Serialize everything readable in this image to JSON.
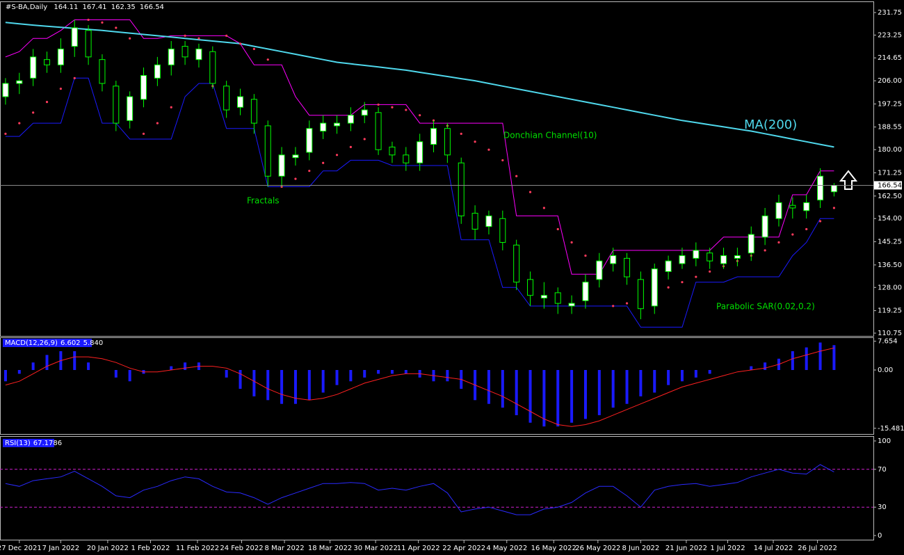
{
  "chart_data": [
    {
      "type": "candlestick",
      "title": "#S-BA,Daily",
      "xlim": [
        -0.4,
        62.8
      ],
      "xticks": [
        {
          "value": 1,
          "label": "27 Dec 2021"
        },
        {
          "value": 4,
          "label": "7 Jan 2022"
        },
        {
          "value": 7.4,
          "label": "20 Jan 2022"
        },
        {
          "value": 10.5,
          "label": "1 Feb 2022"
        },
        {
          "value": 13.9,
          "label": "11 Feb 2022"
        },
        {
          "value": 17.1,
          "label": "24 Feb 2022"
        },
        {
          "value": 20.2,
          "label": "8 Mar 2022"
        },
        {
          "value": 23.5,
          "label": "18 Mar 2022"
        },
        {
          "value": 26.8,
          "label": "30 Mar 2022"
        },
        {
          "value": 29.9,
          "label": "11 Apr 2022"
        },
        {
          "value": 33.2,
          "label": "22 Apr 2022"
        },
        {
          "value": 36.3,
          "label": "4 May 2022"
        },
        {
          "value": 39.7,
          "label": "16 May 2022"
        },
        {
          "value": 42.9,
          "label": "26 May 2022"
        },
        {
          "value": 46,
          "label": "8 Jun 2022"
        },
        {
          "value": 49.3,
          "label": "21 Jun 2022"
        },
        {
          "value": 52.3,
          "label": "1 Jul 2022"
        },
        {
          "value": 55.6,
          "label": "14 Jul 2022"
        },
        {
          "value": 58.8,
          "label": "26 Jul 2022"
        }
      ],
      "ylim": [
        109.7,
        235.7
      ],
      "yticks": [
        231.75,
        223.25,
        214.65,
        {
          "value": 206,
          "label": "206.00"
        },
        197.25,
        188.55,
        {
          "value": 180,
          "label": "180.00"
        },
        171.25,
        {
          "value": 162.5,
          "label": "162.50"
        },
        {
          "value": 154,
          "label": "154.00"
        },
        145.25,
        {
          "value": 136.5,
          "label": "136.50"
        },
        {
          "value": 128,
          "label": "128.00"
        },
        119.25,
        110.75
      ],
      "up_color": "#ffffff",
      "down_color": "#000000",
      "outline_color": "#00ff00",
      "open": [
        200,
        205,
        207,
        214,
        212,
        219,
        225,
        214,
        204,
        191,
        199,
        207,
        212,
        219,
        214,
        217,
        204,
        196,
        199,
        189,
        170,
        177,
        179,
        187,
        189,
        190,
        193,
        194,
        181,
        178,
        175,
        182,
        188,
        175,
        156,
        151,
        154,
        144,
        131,
        124,
        126,
        121,
        123,
        131,
        137,
        139,
        131,
        121,
        134,
        137,
        139,
        141,
        137,
        139,
        141,
        147,
        154,
        159,
        157,
        161,
        164.11
      ],
      "high": [
        207,
        209,
        218,
        217,
        222,
        229,
        227,
        216,
        206,
        202,
        211,
        215,
        221,
        221,
        220,
        219,
        206,
        203,
        201,
        191,
        181,
        181,
        191,
        193,
        193,
        196,
        198,
        196,
        183,
        181,
        186,
        191,
        190,
        177,
        159,
        157,
        157,
        146,
        134,
        130,
        128,
        125,
        133,
        141,
        143,
        141,
        134,
        137,
        140,
        143,
        145,
        143,
        143,
        143,
        151,
        158,
        163,
        162,
        163,
        173,
        167.41
      ],
      "low": [
        197,
        201,
        204,
        209,
        209,
        215,
        212,
        202,
        187,
        188,
        196,
        204,
        208,
        212,
        211,
        203,
        192,
        193,
        186,
        166,
        166,
        174,
        176,
        184,
        186,
        187,
        190,
        178,
        175,
        172,
        172,
        179,
        175,
        152,
        146,
        148,
        142,
        127,
        121,
        120,
        118,
        118,
        120,
        128,
        134,
        129,
        116,
        118,
        131,
        135,
        136,
        135,
        135,
        136,
        138,
        144,
        151,
        154,
        154,
        158,
        162.35
      ],
      "close": [
        205,
        206,
        215,
        212,
        218,
        226,
        215,
        205,
        190,
        200,
        208,
        212,
        218,
        215,
        218,
        205,
        195,
        200,
        190,
        170,
        178,
        178,
        188,
        190,
        190,
        193,
        195,
        180,
        178,
        175,
        183,
        188,
        178,
        155,
        150,
        155,
        145,
        130,
        125,
        125,
        122,
        122,
        130,
        138,
        140,
        132,
        120,
        135,
        138,
        140,
        142,
        138,
        140,
        140,
        148,
        155,
        160,
        158,
        160,
        170,
        166.54
      ],
      "ma": {
        "name": "MA(200)",
        "color": "#4fd8ec",
        "values": [
          228,
          227.5,
          227,
          226.6,
          226.2,
          225.8,
          225.4,
          225,
          224.5,
          224,
          223.5,
          223,
          222.5,
          222,
          221.5,
          221,
          220.5,
          220,
          219,
          218,
          217,
          216,
          215,
          214,
          213,
          212.4,
          211.8,
          211.2,
          210.6,
          210,
          209.2,
          208.4,
          207.6,
          206.8,
          206,
          205,
          204,
          203,
          202,
          201,
          200,
          199,
          198,
          197,
          196,
          195,
          194,
          193,
          192,
          191,
          190.2,
          189.4,
          188.6,
          187.8,
          187,
          186,
          185,
          184,
          183,
          182,
          181
        ]
      },
      "donchian": {
        "name": "Donchian Channel(10)",
        "upper_color": "#ff00ff",
        "lower_color": "#1a1aff",
        "upper": [
          215,
          217,
          222,
          222,
          225,
          229,
          229,
          229,
          229,
          229,
          222,
          222,
          223,
          223,
          223,
          223,
          223,
          220,
          212,
          212,
          212,
          200,
          193,
          193,
          193,
          193,
          197,
          197,
          197,
          197,
          190,
          190,
          190,
          190,
          190,
          190,
          190,
          155,
          155,
          155,
          155,
          133,
          133,
          133,
          142,
          142,
          142,
          142,
          142,
          142,
          142,
          142,
          147,
          147,
          147,
          147,
          147,
          163,
          163,
          172,
          172
        ],
        "lower": [
          185,
          185,
          190,
          190,
          190,
          207,
          207,
          190,
          190,
          184,
          184,
          184,
          184,
          200,
          205,
          205,
          188,
          188,
          188,
          166,
          166,
          166,
          166,
          172,
          172,
          176,
          176,
          176,
          174,
          174,
          174,
          174,
          174,
          146,
          146,
          146,
          128,
          128,
          121,
          121,
          121,
          121,
          121,
          121,
          121,
          121,
          113,
          113,
          113,
          113,
          130,
          130,
          130,
          132,
          132,
          132,
          132,
          140,
          145,
          154,
          154
        ]
      },
      "sar": {
        "name": "Parabolic SAR(0.02,0.2)",
        "color": "#ff3b5c",
        "values": [
          186,
          190,
          194,
          198,
          203,
          207,
          229,
          228,
          226,
          222,
          186,
          190,
          196,
          223,
          222,
          204,
          223,
          220,
          218,
          214,
          166,
          169,
          172,
          175,
          178,
          181,
          184,
          197,
          196,
          195,
          193,
          191,
          189,
          186,
          183,
          180,
          176,
          170,
          164,
          158,
          150,
          145,
          140,
          137,
          121,
          122,
          124,
          126,
          128,
          130,
          132,
          134,
          136,
          138,
          140,
          142,
          145,
          148,
          150,
          153,
          158
        ]
      },
      "fractals_label": "Fractals",
      "annotation_color": "#00e000",
      "last_price_line": true
    },
    {
      "type": "macd",
      "title": "MACD(12,26,9)",
      "legend_values": [
        6.602,
        {
          "value": 5.84,
          "label": "5.840"
        }
      ],
      "ylim": [
        -17.0,
        8.5
      ],
      "yticks": [
        7.654,
        {
          "value": 0,
          "label": "0.00"
        },
        -15.481
      ],
      "histogram": {
        "color": "#1a1aff",
        "values": [
          -3,
          -1,
          2,
          4,
          5,
          5,
          2,
          0,
          -2,
          -3,
          -1,
          0,
          1,
          2,
          2,
          0,
          -2,
          -5,
          -7,
          -8,
          -9,
          -9,
          -8,
          -6,
          -4,
          -3,
          -2,
          -1,
          -1,
          -1,
          -2,
          -3,
          -3,
          -5,
          -8,
          -9,
          -10,
          -12,
          -14,
          -15,
          -15,
          -14,
          -13,
          -12,
          -10,
          -9,
          -7,
          -6,
          -4,
          -3,
          -2,
          -1,
          0,
          0,
          1,
          2,
          3,
          5,
          6,
          7.3,
          6.602
        ]
      },
      "signal": {
        "color": "#ff2020",
        "values": [
          -4,
          -3,
          -1,
          1,
          2.5,
          3.5,
          3.5,
          3,
          2,
          0.5,
          -0.5,
          -0.5,
          0,
          0.5,
          1,
          1,
          0.5,
          -1,
          -3,
          -5,
          -6.5,
          -7.5,
          -8,
          -7.5,
          -6.5,
          -5,
          -3.5,
          -2.5,
          -1.5,
          -1,
          -1,
          -1.5,
          -2,
          -2.5,
          -4,
          -5.5,
          -7,
          -9,
          -11,
          -13,
          -14.5,
          -15,
          -14.5,
          -13.5,
          -12,
          -10.5,
          -9,
          -7.5,
          -6,
          -4.5,
          -3.5,
          -2.5,
          -1.5,
          -0.5,
          0,
          0.5,
          1.5,
          3,
          4,
          5,
          5.84
        ]
      }
    },
    {
      "type": "line",
      "title": "RSI(13)",
      "ylim": [
        -4.4,
        104.4
      ],
      "yticks": [
        100,
        70,
        30,
        0
      ],
      "levels": [
        70,
        30
      ],
      "level_color": "#d020d0",
      "series": [
        {
          "color": "#2a2aff",
          "values": [
            55,
            52,
            58,
            60,
            62,
            68,
            60,
            52,
            42,
            40,
            48,
            52,
            58,
            62,
            60,
            52,
            46,
            45,
            40,
            33,
            40,
            45,
            50,
            55,
            55,
            56,
            55,
            48,
            50,
            48,
            52,
            55,
            45,
            25,
            28,
            30,
            26,
            22,
            22,
            28,
            30,
            35,
            45,
            52,
            52,
            42,
            30,
            48,
            52,
            54,
            55,
            52,
            54,
            56,
            62,
            66,
            70,
            66,
            65,
            75,
            67.1786
          ]
        }
      ]
    }
  ]
}
